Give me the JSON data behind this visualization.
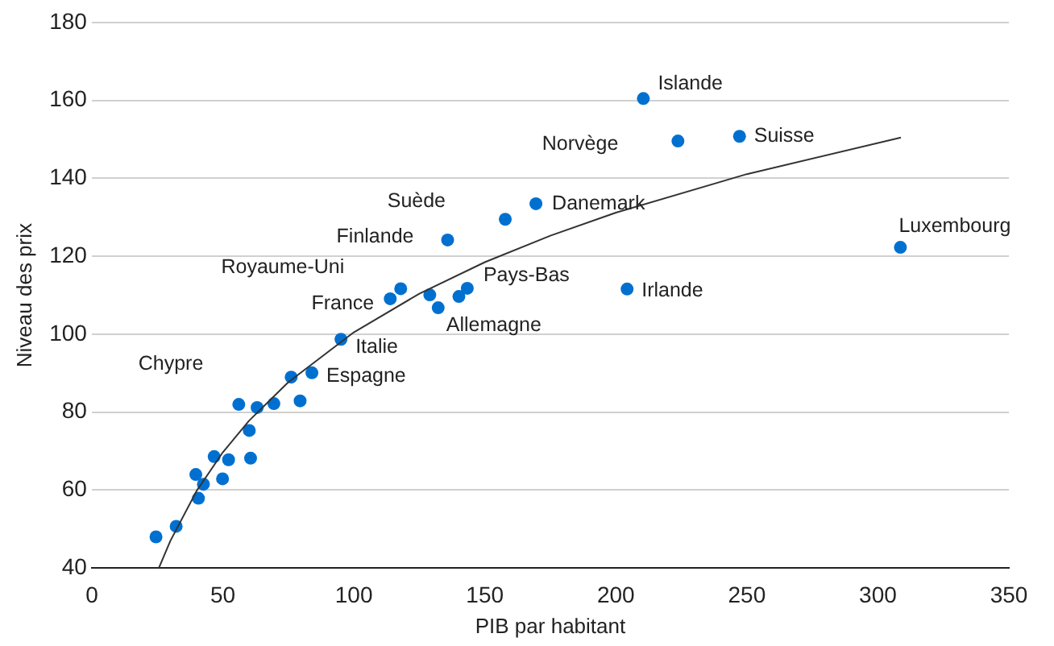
{
  "chart_data": {
    "type": "scatter",
    "xlabel": "PIB par habitant",
    "ylabel": "Niveau des prix",
    "xlim": [
      0,
      350
    ],
    "xticks": [
      0,
      50,
      100,
      150,
      200,
      250,
      300,
      350
    ],
    "ylim": [
      40,
      180
    ],
    "yticks": [
      40,
      60,
      80,
      100,
      120,
      140,
      160,
      180
    ],
    "grid": "y",
    "legend": false,
    "marker": "circle",
    "series": [
      {
        "type": "scatter",
        "color": "#0070d0",
        "x": [
          24.5,
          32.2,
          40.7,
          39.7,
          42.6,
          46.7,
          49.9,
          52.2,
          60.6,
          60.1,
          56.1,
          63.1,
          69.5,
          79.5,
          76.1,
          84,
          95.1,
          113.9,
          117.9,
          129,
          132.2,
          140.1,
          143.3,
          135.8,
          157.8,
          169.5,
          210.5,
          223.7,
          247.2,
          204.3,
          308.6
        ],
        "values": [
          48,
          50.7,
          57.9,
          64,
          61.5,
          68.6,
          62.9,
          67.8,
          68.2,
          75.3,
          82,
          81.2,
          82.2,
          82.9,
          89,
          90.1,
          98.7,
          109.1,
          111.7,
          110.1,
          106.8,
          109.7,
          111.8,
          124.2,
          129.5,
          133.5,
          160.5,
          149.6,
          150.8,
          111.6,
          122.3
        ]
      },
      {
        "type": "line",
        "color": "#333333",
        "marker": "none",
        "x": [
          25.6,
          30,
          40,
          50,
          60,
          75,
          100,
          125,
          150,
          175,
          200,
          250,
          308.8
        ],
        "values": [
          40,
          47,
          59.8,
          69.7,
          77.8,
          87.7,
          100.5,
          110.4,
          118.5,
          125.3,
          131.2,
          141.1,
          150.5
        ]
      }
    ],
    "annotations": [
      {
        "text": "Islande",
        "x": 210.5,
        "y": 160.5
      },
      {
        "text": "Norvège",
        "x": 223.7,
        "y": 149.6
      },
      {
        "text": "Suisse",
        "x": 247.2,
        "y": 150.8
      },
      {
        "text": "Danemark",
        "x": 169.5,
        "y": 133.5
      },
      {
        "text": "Suède",
        "x": 157.8,
        "y": 129.5
      },
      {
        "text": "Finlande",
        "x": 135.8,
        "y": 124.2
      },
      {
        "text": "Royaume-Uni",
        "x": 117.9,
        "y": 111.7
      },
      {
        "text": "France",
        "x": 113.9,
        "y": 109.1
      },
      {
        "text": "Pays-Bas",
        "x": 143.3,
        "y": 111.8
      },
      {
        "text": "Allemagne",
        "x": 132.2,
        "y": 106.8
      },
      {
        "text": "Italie",
        "x": 95.1,
        "y": 98.7
      },
      {
        "text": "Espagne",
        "x": 84,
        "y": 90.1
      },
      {
        "text": "Chypre",
        "x": 56.1,
        "y": 82
      },
      {
        "text": "Irlande",
        "x": 204.3,
        "y": 111.6
      },
      {
        "text": "Luxembourg",
        "x": 308.6,
        "y": 122.3
      }
    ]
  }
}
